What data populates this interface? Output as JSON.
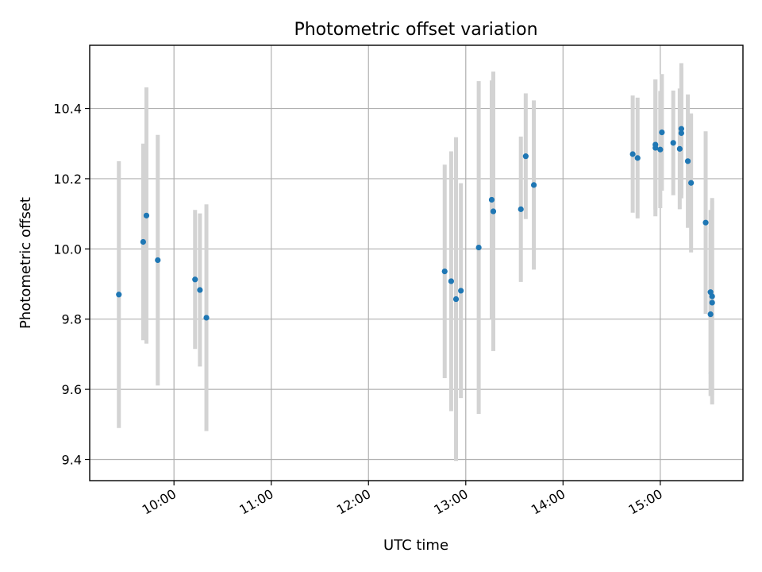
{
  "chart_data": {
    "type": "scatter",
    "title": "Photometric offset variation",
    "xlabel": "UTC time",
    "ylabel": "Photometric offset",
    "x_unit": "UTC time (HH:MM)",
    "xlim": [
      "09:08",
      "15:51"
    ],
    "ylim": [
      9.34,
      10.58
    ],
    "x_ticks": [
      "10:00",
      "11:00",
      "12:00",
      "13:00",
      "14:00",
      "15:00"
    ],
    "y_ticks": [
      "9.4",
      "9.6",
      "9.8",
      "10.0",
      "10.2",
      "10.4"
    ],
    "grid": true,
    "point_color": "#1f77b4",
    "errorbar_color": "#d3d3d3",
    "points": [
      {
        "t": "09:26",
        "y": 9.87,
        "err": 0.38
      },
      {
        "t": "09:41",
        "y": 10.02,
        "err": 0.28
      },
      {
        "t": "09:43",
        "y": 10.095,
        "err": 0.365
      },
      {
        "t": "09:50",
        "y": 9.968,
        "err": 0.357
      },
      {
        "t": "10:13",
        "y": 9.913,
        "err": 0.198
      },
      {
        "t": "10:16",
        "y": 9.883,
        "err": 0.218
      },
      {
        "t": "10:20",
        "y": 9.804,
        "err": 0.323
      },
      {
        "t": "12:47",
        "y": 9.936,
        "err": 0.304
      },
      {
        "t": "12:51",
        "y": 9.908,
        "err": 0.37
      },
      {
        "t": "12:54",
        "y": 9.857,
        "err": 0.461
      },
      {
        "t": "12:57",
        "y": 9.881,
        "err": 0.306
      },
      {
        "t": "13:08",
        "y": 10.004,
        "err": 0.474
      },
      {
        "t": "13:16",
        "y": 10.14,
        "err": 0.34
      },
      {
        "t": "13:17",
        "y": 10.107,
        "err": 0.398
      },
      {
        "t": "13:34",
        "y": 10.113,
        "err": 0.207
      },
      {
        "t": "13:37",
        "y": 10.264,
        "err": 0.179
      },
      {
        "t": "13:42",
        "y": 10.182,
        "err": 0.241
      },
      {
        "t": "14:43",
        "y": 10.27,
        "err": 0.167
      },
      {
        "t": "14:46",
        "y": 10.259,
        "err": 0.172
      },
      {
        "t": "14:57",
        "y": 10.288,
        "err": 0.195
      },
      {
        "t": "14:57",
        "y": 10.297,
        "err": 0.185
      },
      {
        "t": "15:00",
        "y": 10.283,
        "err": 0.167
      },
      {
        "t": "15:01",
        "y": 10.332,
        "err": 0.166
      },
      {
        "t": "15:08",
        "y": 10.302,
        "err": 0.149
      },
      {
        "t": "15:12",
        "y": 10.285,
        "err": 0.172
      },
      {
        "t": "15:13",
        "y": 10.342,
        "err": 0.187
      },
      {
        "t": "15:13",
        "y": 10.33,
        "err": 0.186
      },
      {
        "t": "15:17",
        "y": 10.25,
        "err": 0.19
      },
      {
        "t": "15:19",
        "y": 10.188,
        "err": 0.198
      },
      {
        "t": "15:28",
        "y": 10.075,
        "err": 0.26
      },
      {
        "t": "15:31",
        "y": 9.877,
        "err": 0.234
      },
      {
        "t": "15:31",
        "y": 9.814,
        "err": 0.233
      },
      {
        "t": "15:32",
        "y": 9.865,
        "err": 0.28
      },
      {
        "t": "15:32",
        "y": 9.847,
        "err": 0.29
      }
    ]
  }
}
